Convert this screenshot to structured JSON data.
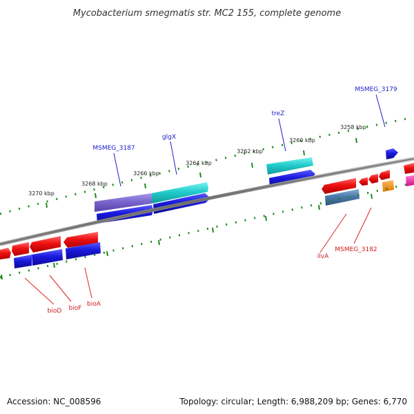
{
  "title": "Mycobacterium smegmatis str. MC2 155, complete genome",
  "footer": {
    "accession": "Accession: NC_008596",
    "topology": "Topology: circular; Length: 6,988,209 bp; Genes: 6,770"
  },
  "ticks": [
    {
      "label": "3270 kbp"
    },
    {
      "label": "3268 kbp"
    },
    {
      "label": "3266 kbp"
    },
    {
      "label": "3264 kbp"
    },
    {
      "label": "3262 kbp"
    },
    {
      "label": "3260 kbp"
    },
    {
      "label": "3258 kbp"
    }
  ],
  "gene_labels": {
    "top": [
      {
        "name": "MSMEG_3187"
      },
      {
        "name": "glgX"
      },
      {
        "name": "treZ"
      },
      {
        "name": "MSMEG_3179"
      }
    ],
    "bottom": [
      {
        "name": "bioD"
      },
      {
        "name": "bioF"
      },
      {
        "name": "bioA"
      },
      {
        "name": "ilvA"
      },
      {
        "name": "MSMEG_3182"
      }
    ]
  },
  "colors": {
    "backbone": "#888888",
    "tick_dash": "#1f8a1f",
    "gene_red": "#ee1111",
    "gene_blue": "#1a1add",
    "gene_cyan": "#22cccc",
    "gene_purple": "#7a66cc",
    "gene_steel": "#4a7aaa",
    "gene_orange": "#ff8c00",
    "gene_magenta": "#ee22aa"
  }
}
